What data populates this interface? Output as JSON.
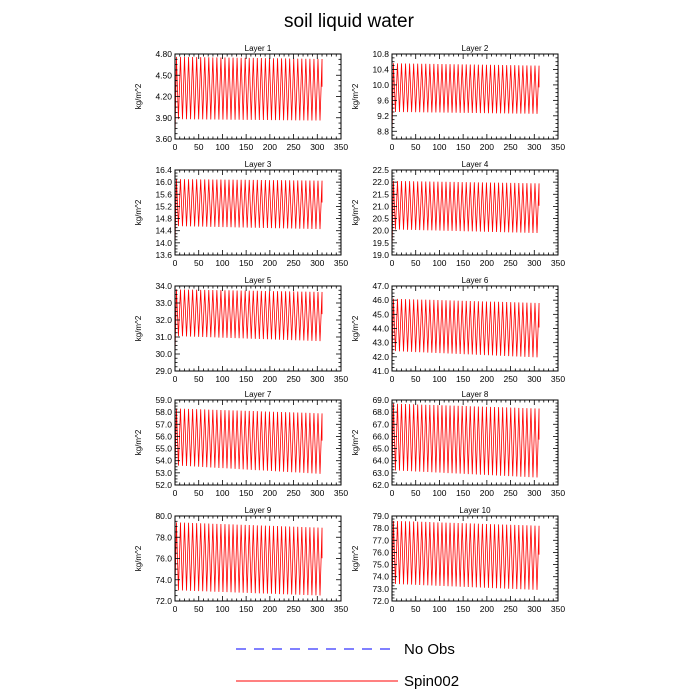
{
  "title": "soil liquid water",
  "legend": [
    {
      "name": "No Obs",
      "color": "#0000ff",
      "style": "dashed"
    },
    {
      "name": "Spin002",
      "color": "#ff0000",
      "style": "solid"
    }
  ],
  "chart_data": [
    {
      "type": "line",
      "title": "Layer 1",
      "xlabel": "",
      "ylabel": "kg/m^2",
      "xlim": [
        0,
        350
      ],
      "ylim": [
        3.6,
        4.8
      ],
      "xticks": [
        "0",
        "50",
        "100",
        "150",
        "200",
        "250",
        "300",
        "350"
      ],
      "yticks": [
        "3.60",
        "3.90",
        "4.20",
        "4.50",
        "4.80"
      ],
      "series": [
        {
          "name": "Spin002",
          "color": "#ff0000",
          "x_end": 310,
          "initial": 3.62,
          "cycles": 36,
          "upper_start": 4.76,
          "upper_end": 4.73,
          "lower_start": 3.88,
          "lower_end": 3.86
        }
      ]
    },
    {
      "type": "line",
      "title": "Layer 2",
      "xlabel": "",
      "ylabel": "kg/m^2",
      "xlim": [
        0,
        350
      ],
      "ylim": [
        8.6,
        10.8
      ],
      "xticks": [
        "0",
        "50",
        "100",
        "150",
        "200",
        "250",
        "300",
        "350"
      ],
      "yticks": [
        "8.8",
        "9.2",
        "9.6",
        "10.0",
        "10.4",
        "10.8"
      ],
      "series": [
        {
          "name": "Spin002",
          "color": "#ff0000",
          "x_end": 310,
          "initial": 8.7,
          "cycles": 36,
          "upper_start": 10.56,
          "upper_end": 10.5,
          "lower_start": 9.3,
          "lower_end": 9.25
        }
      ]
    },
    {
      "type": "line",
      "title": "Layer 3",
      "xlabel": "",
      "ylabel": "kg/m^2",
      "xlim": [
        0,
        350
      ],
      "ylim": [
        13.6,
        16.4
      ],
      "xticks": [
        "0",
        "50",
        "100",
        "150",
        "200",
        "250",
        "300",
        "350"
      ],
      "yticks": [
        "13.6",
        "14.0",
        "14.4",
        "14.8",
        "15.2",
        "15.6",
        "16.0",
        "16.4"
      ],
      "series": [
        {
          "name": "Spin002",
          "color": "#ff0000",
          "x_end": 310,
          "initial": 13.9,
          "cycles": 36,
          "upper_start": 16.1,
          "upper_end": 16.05,
          "lower_start": 14.55,
          "lower_end": 14.45
        }
      ]
    },
    {
      "type": "line",
      "title": "Layer 4",
      "xlabel": "",
      "ylabel": "kg/m^2",
      "xlim": [
        0,
        350
      ],
      "ylim": [
        19.0,
        22.5
      ],
      "xticks": [
        "0",
        "50",
        "100",
        "150",
        "200",
        "250",
        "300",
        "350"
      ],
      "yticks": [
        "19.0",
        "19.5",
        "20.0",
        "20.5",
        "21.0",
        "21.5",
        "22.0",
        "22.5"
      ],
      "series": [
        {
          "name": "Spin002",
          "color": "#ff0000",
          "x_end": 310,
          "initial": 19.2,
          "cycles": 36,
          "upper_start": 22.05,
          "upper_end": 21.95,
          "lower_start": 20.05,
          "lower_end": 19.9
        }
      ]
    },
    {
      "type": "line",
      "title": "Layer 5",
      "xlabel": "",
      "ylabel": "kg/m^2",
      "xlim": [
        0,
        350
      ],
      "ylim": [
        29.0,
        34.0
      ],
      "xticks": [
        "0",
        "50",
        "100",
        "150",
        "200",
        "250",
        "300",
        "350"
      ],
      "yticks": [
        "29.0",
        "30.0",
        "31.0",
        "32.0",
        "33.0",
        "34.0"
      ],
      "series": [
        {
          "name": "Spin002",
          "color": "#ff0000",
          "x_end": 310,
          "initial": 30.0,
          "cycles": 36,
          "upper_start": 33.8,
          "upper_end": 33.65,
          "lower_start": 31.05,
          "lower_end": 30.75
        }
      ]
    },
    {
      "type": "line",
      "title": "Layer 6",
      "xlabel": "",
      "ylabel": "kg/m^2",
      "xlim": [
        0,
        350
      ],
      "ylim": [
        41.0,
        47.0
      ],
      "xticks": [
        "0",
        "50",
        "100",
        "150",
        "200",
        "250",
        "300",
        "350"
      ],
      "yticks": [
        "41.0",
        "42.0",
        "43.0",
        "44.0",
        "45.0",
        "46.0",
        "47.0"
      ],
      "series": [
        {
          "name": "Spin002",
          "color": "#ff0000",
          "x_end": 310,
          "initial": 41.5,
          "cycles": 36,
          "upper_start": 46.1,
          "upper_end": 45.8,
          "lower_start": 42.4,
          "lower_end": 41.95
        }
      ]
    },
    {
      "type": "line",
      "title": "Layer 7",
      "xlabel": "",
      "ylabel": "kg/m^2",
      "xlim": [
        0,
        350
      ],
      "ylim": [
        52.0,
        59.0
      ],
      "xticks": [
        "0",
        "50",
        "100",
        "150",
        "200",
        "250",
        "300",
        "350"
      ],
      "yticks": [
        "52.0",
        "53.0",
        "54.0",
        "55.0",
        "56.0",
        "57.0",
        "58.0",
        "59.0"
      ],
      "series": [
        {
          "name": "Spin002",
          "color": "#ff0000",
          "x_end": 310,
          "initial": 53.0,
          "cycles": 36,
          "upper_start": 58.3,
          "upper_end": 57.9,
          "lower_start": 53.6,
          "lower_end": 52.9
        }
      ]
    },
    {
      "type": "line",
      "title": "Layer 8",
      "xlabel": "",
      "ylabel": "kg/m^2",
      "xlim": [
        0,
        350
      ],
      "ylim": [
        62.0,
        69.0
      ],
      "xticks": [
        "0",
        "50",
        "100",
        "150",
        "200",
        "250",
        "300",
        "350"
      ],
      "yticks": [
        "62.0",
        "63.0",
        "64.0",
        "65.0",
        "66.0",
        "67.0",
        "68.0",
        "69.0"
      ],
      "series": [
        {
          "name": "Spin002",
          "color": "#ff0000",
          "x_end": 310,
          "initial": 63.0,
          "cycles": 36,
          "upper_start": 68.7,
          "upper_end": 68.3,
          "lower_start": 63.2,
          "lower_end": 62.6
        }
      ]
    },
    {
      "type": "line",
      "title": "Layer 9",
      "xlabel": "",
      "ylabel": "kg/m^2",
      "xlim": [
        0,
        350
      ],
      "ylim": [
        72.0,
        80.0
      ],
      "xticks": [
        "0",
        "50",
        "100",
        "150",
        "200",
        "250",
        "300",
        "350"
      ],
      "yticks": [
        "72.0",
        "74.0",
        "76.0",
        "78.0",
        "80.0"
      ],
      "series": [
        {
          "name": "Spin002",
          "color": "#ff0000",
          "x_end": 310,
          "initial": 73.0,
          "cycles": 36,
          "upper_start": 79.4,
          "upper_end": 78.9,
          "lower_start": 73.0,
          "lower_end": 72.5
        }
      ]
    },
    {
      "type": "line",
      "title": "Layer 10",
      "xlabel": "",
      "ylabel": "kg/m^2",
      "xlim": [
        0,
        350
      ],
      "ylim": [
        72.0,
        79.0
      ],
      "xticks": [
        "0",
        "50",
        "100",
        "150",
        "200",
        "250",
        "300",
        "350"
      ],
      "yticks": [
        "72.0",
        "73.0",
        "74.0",
        "75.0",
        "76.0",
        "77.0",
        "78.0",
        "79.0"
      ],
      "series": [
        {
          "name": "Spin002",
          "color": "#ff0000",
          "x_end": 310,
          "initial": 72.5,
          "cycles": 36,
          "upper_start": 78.6,
          "upper_end": 78.2,
          "lower_start": 73.4,
          "lower_end": 72.9
        }
      ]
    }
  ]
}
